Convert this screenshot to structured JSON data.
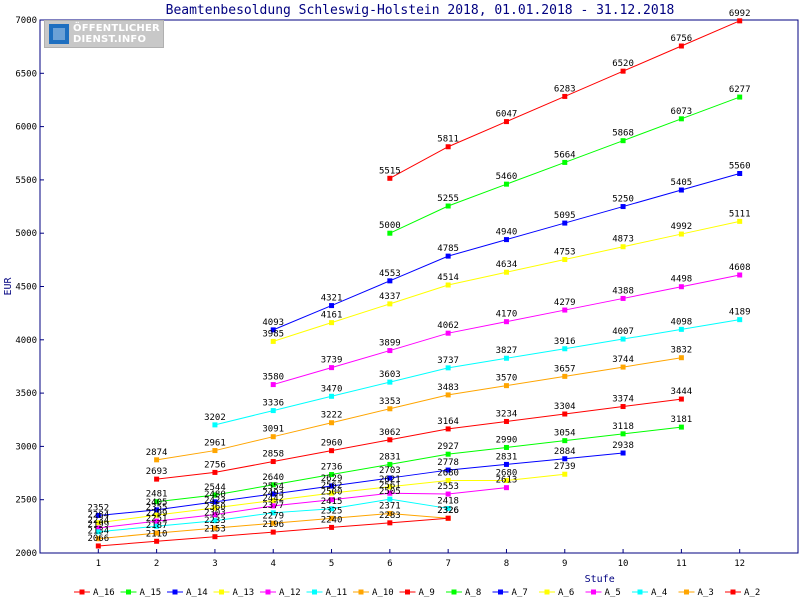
{
  "title": "Beamtenbesoldung Schleswig-Holstein 2018, 01.01.2018 - 31.12.2018",
  "logo": {
    "line1": "ÖFFENTLICHER",
    "line2": "DIENST.INFO"
  },
  "chart_data": {
    "type": "line",
    "title": "Beamtenbesoldung Schleswig-Holstein 2018, 01.01.2018 - 31.12.2018",
    "xlabel": "Stufe",
    "ylabel": "EUR",
    "xlim": [
      0,
      13
    ],
    "ylim": [
      2000,
      7000
    ],
    "xticks": [
      1,
      2,
      3,
      4,
      5,
      6,
      7,
      8,
      9,
      10,
      11,
      12
    ],
    "yticks": [
      2000,
      2500,
      3000,
      3500,
      4000,
      4500,
      5000,
      5500,
      6000,
      6500,
      7000
    ],
    "grid": false,
    "legend_position": "bottom",
    "series": [
      {
        "name": "A_16",
        "color": "#ff0000",
        "points": [
          [
            6,
            5515
          ],
          [
            7,
            5811
          ],
          [
            8,
            6047
          ],
          [
            9,
            6283
          ],
          [
            10,
            6520
          ],
          [
            11,
            6756
          ],
          [
            12,
            6992
          ]
        ]
      },
      {
        "name": "A_15",
        "color": "#00ff00",
        "points": [
          [
            6,
            5000
          ],
          [
            7,
            5255
          ],
          [
            8,
            5460
          ],
          [
            9,
            5664
          ],
          [
            10,
            5868
          ],
          [
            11,
            6073
          ],
          [
            12,
            6277
          ]
        ]
      },
      {
        "name": "A_14",
        "color": "#0000ff",
        "points": [
          [
            4,
            4093
          ],
          [
            5,
            4321
          ],
          [
            6,
            4553
          ],
          [
            7,
            4785
          ],
          [
            8,
            4940
          ],
          [
            9,
            5095
          ],
          [
            10,
            5250
          ],
          [
            11,
            5405
          ],
          [
            12,
            5560
          ]
        ]
      },
      {
        "name": "A_13",
        "color": "#ffff00",
        "points": [
          [
            4,
            3985
          ],
          [
            5,
            4161
          ],
          [
            6,
            4337
          ],
          [
            7,
            4514
          ],
          [
            8,
            4634
          ],
          [
            9,
            4753
          ],
          [
            10,
            4873
          ],
          [
            11,
            4992
          ],
          [
            12,
            5111
          ]
        ]
      },
      {
        "name": "A_12",
        "color": "#ff00ff",
        "points": [
          [
            4,
            3580
          ],
          [
            5,
            3739
          ],
          [
            6,
            3899
          ],
          [
            7,
            4062
          ],
          [
            8,
            4170
          ],
          [
            9,
            4279
          ],
          [
            10,
            4388
          ],
          [
            11,
            4498
          ],
          [
            12,
            4608
          ]
        ]
      },
      {
        "name": "A_11",
        "color": "#00ffff",
        "points": [
          [
            3,
            3202
          ],
          [
            4,
            3336
          ],
          [
            5,
            3470
          ],
          [
            6,
            3603
          ],
          [
            7,
            3737
          ],
          [
            8,
            3827
          ],
          [
            9,
            3916
          ],
          [
            10,
            4007
          ],
          [
            11,
            4098
          ],
          [
            12,
            4189
          ]
        ]
      },
      {
        "name": "A_10",
        "color": "#ffa500",
        "points": [
          [
            2,
            2874
          ],
          [
            3,
            2961
          ],
          [
            4,
            3091
          ],
          [
            5,
            3222
          ],
          [
            6,
            3353
          ],
          [
            7,
            3483
          ],
          [
            8,
            3570
          ],
          [
            9,
            3657
          ],
          [
            10,
            3744
          ],
          [
            11,
            3832
          ]
        ]
      },
      {
        "name": "A_9",
        "color": "#ff0000",
        "points": [
          [
            2,
            2693
          ],
          [
            3,
            2756
          ],
          [
            4,
            2858
          ],
          [
            5,
            2960
          ],
          [
            6,
            3062
          ],
          [
            7,
            3164
          ],
          [
            8,
            3234
          ],
          [
            9,
            3304
          ],
          [
            10,
            3374
          ],
          [
            11,
            3444
          ]
        ]
      },
      {
        "name": "A_8",
        "color": "#00ff00",
        "points": [
          [
            2,
            2481
          ],
          [
            3,
            2544
          ],
          [
            4,
            2640
          ],
          [
            5,
            2736
          ],
          [
            6,
            2831
          ],
          [
            7,
            2927
          ],
          [
            8,
            2990
          ],
          [
            9,
            3054
          ],
          [
            10,
            3118
          ],
          [
            11,
            3181
          ]
        ]
      },
      {
        "name": "A_7",
        "color": "#0000ff",
        "points": [
          [
            1,
            2352
          ],
          [
            2,
            2405
          ],
          [
            3,
            2480
          ],
          [
            4,
            2554
          ],
          [
            5,
            2629
          ],
          [
            6,
            2703
          ],
          [
            7,
            2778
          ],
          [
            8,
            2831
          ],
          [
            9,
            2884
          ],
          [
            10,
            2938
          ]
        ]
      },
      {
        "name": "A_6",
        "color": "#ffff00",
        "points": [
          [
            1,
            2284
          ],
          [
            2,
            2355
          ],
          [
            3,
            2423
          ],
          [
            4,
            2493
          ],
          [
            5,
            2562
          ],
          [
            6,
            2621
          ],
          [
            7,
            2680
          ],
          [
            8,
            2680
          ],
          [
            9,
            2739
          ]
        ]
      },
      {
        "name": "A_5",
        "color": "#ff00ff",
        "points": [
          [
            1,
            2234
          ],
          [
            2,
            2299
          ],
          [
            3,
            2360
          ],
          [
            4,
            2442
          ],
          [
            5,
            2500
          ],
          [
            6,
            2561
          ],
          [
            7,
            2553
          ],
          [
            8,
            2613
          ]
        ]
      },
      {
        "name": "A_4",
        "color": "#00ffff",
        "points": [
          [
            1,
            2199
          ],
          [
            2,
            2251
          ],
          [
            3,
            2303
          ],
          [
            4,
            2377
          ],
          [
            5,
            2415
          ],
          [
            6,
            2505
          ],
          [
            7,
            2418
          ]
        ]
      },
      {
        "name": "A_3",
        "color": "#ffa500",
        "points": [
          [
            1,
            2134
          ],
          [
            2,
            2187
          ],
          [
            3,
            2233
          ],
          [
            4,
            2279
          ],
          [
            5,
            2325
          ],
          [
            6,
            2371
          ],
          [
            7,
            2326
          ]
        ]
      },
      {
        "name": "A_2",
        "color": "#ff0000",
        "points": [
          [
            1,
            2066
          ],
          [
            2,
            2110
          ],
          [
            3,
            2153
          ],
          [
            4,
            2196
          ],
          [
            5,
            2240
          ],
          [
            6,
            2283
          ],
          [
            7,
            2326
          ]
        ]
      }
    ]
  }
}
